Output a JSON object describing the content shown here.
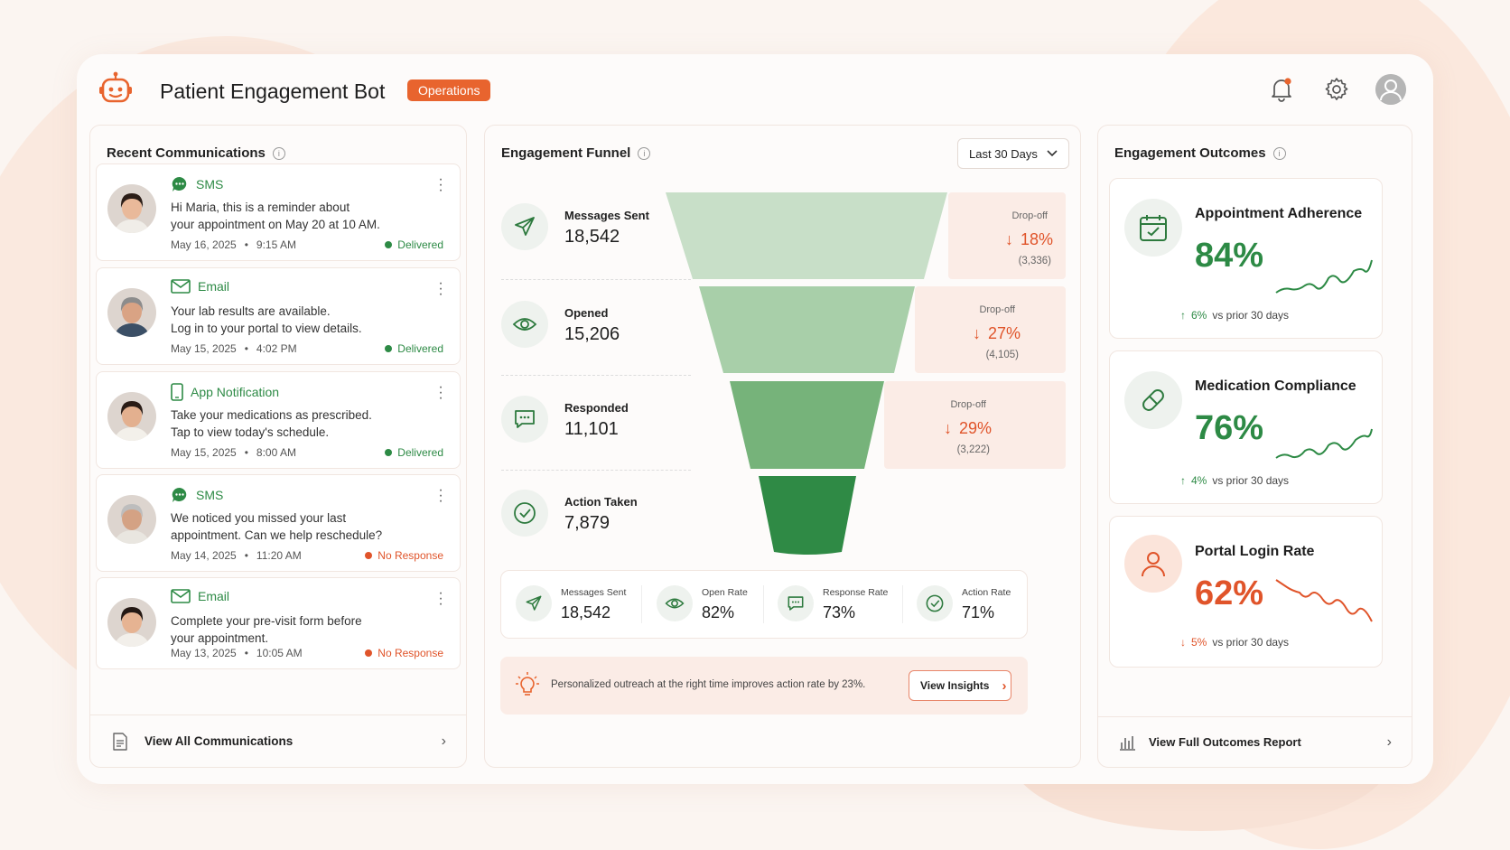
{
  "header": {
    "title": "Patient Engagement Bot",
    "badge": "Operations"
  },
  "communications": {
    "title": "Recent Communications",
    "items": [
      {
        "channel": "SMS",
        "line1": "Hi Maria, this is a reminder about",
        "line2": "your appointment on May 20 at 10 AM.",
        "date": "May 16, 2025",
        "time": "9:15 AM",
        "status": "Delivered"
      },
      {
        "channel": "Email",
        "line1": "Your lab results are available.",
        "line2": "Log in to your portal to view details.",
        "date": "May 15, 2025",
        "time": "4:02 PM",
        "status": "Delivered"
      },
      {
        "channel": "App Notification",
        "line1": "Take your medications as prescribed.",
        "line2": "Tap to view today's schedule.",
        "date": "May 15, 2025",
        "time": "8:00 AM",
        "status": "Delivered"
      },
      {
        "channel": "SMS",
        "line1": "We noticed you missed your last",
        "line2": "appointment. Can we help reschedule?",
        "date": "May 14, 2025",
        "time": "11:20 AM",
        "status": "No Response"
      },
      {
        "channel": "Email",
        "line1": "Complete your pre-visit form before",
        "line2": "your appointment.",
        "date": "May 13, 2025",
        "time": "10:05 AM",
        "status": "No Response"
      }
    ],
    "view_all": "View All Communications"
  },
  "funnel": {
    "title": "Engagement Funnel",
    "range": "Last 30 Days",
    "stages": [
      {
        "label": "Messages Sent",
        "value": "18,542"
      },
      {
        "label": "Opened",
        "value": "15,206"
      },
      {
        "label": "Responded",
        "value": "11,101"
      },
      {
        "label": "Action Taken",
        "value": "7,879"
      }
    ],
    "dropoffs": [
      {
        "label": "Drop-off",
        "pct": "18%",
        "count": "(3,336)"
      },
      {
        "label": "Drop-off",
        "pct": "27%",
        "count": "(4,105)"
      },
      {
        "label": "Drop-off",
        "pct": "29%",
        "count": "(3,222)"
      }
    ],
    "summary": [
      {
        "label": "Messages Sent",
        "value": "18,542"
      },
      {
        "label": "Open Rate",
        "value": "82%"
      },
      {
        "label": "Response Rate",
        "value": "73%"
      },
      {
        "label": "Action Rate",
        "value": "71%"
      }
    ],
    "insight": "Personalized outreach at the right time improves action rate by 23%.",
    "insight_button": "View Insights"
  },
  "outcomes": {
    "title": "Engagement Outcomes",
    "items": [
      {
        "name": "Appointment Adherence",
        "pct": "84%",
        "delta": "6%",
        "vs": "vs prior 30 days",
        "direction": "up",
        "color": "#2d8a45"
      },
      {
        "name": "Medication Compliance",
        "pct": "76%",
        "delta": "4%",
        "vs": "vs prior 30 days",
        "direction": "up",
        "color": "#2d8a45"
      },
      {
        "name": "Portal Login Rate",
        "pct": "62%",
        "delta": "5%",
        "vs": "vs prior 30 days",
        "direction": "down",
        "color": "#e0542a"
      }
    ],
    "full_report": "View Full Outcomes Report"
  },
  "colors": {
    "accent": "#e8642e",
    "green": "#2d8a45",
    "red": "#e0542a"
  }
}
